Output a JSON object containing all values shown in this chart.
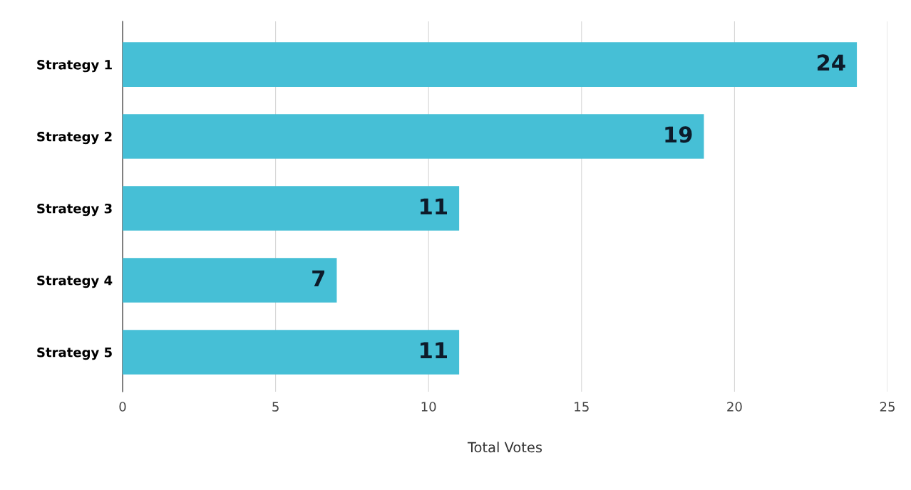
{
  "chart_data": {
    "type": "bar",
    "orientation": "horizontal",
    "categories": [
      "Strategy 1",
      "Strategy 2",
      "Strategy 3",
      "Strategy 4",
      "Strategy 5"
    ],
    "values": [
      24,
      19,
      11,
      7,
      11
    ],
    "color": "#46bfd6",
    "data_labels": true,
    "xlabel": "Total Votes",
    "xlim": [
      0,
      25
    ],
    "xticks": [
      0,
      5,
      10,
      15,
      20,
      25
    ],
    "grid": "x",
    "legend": false
  }
}
